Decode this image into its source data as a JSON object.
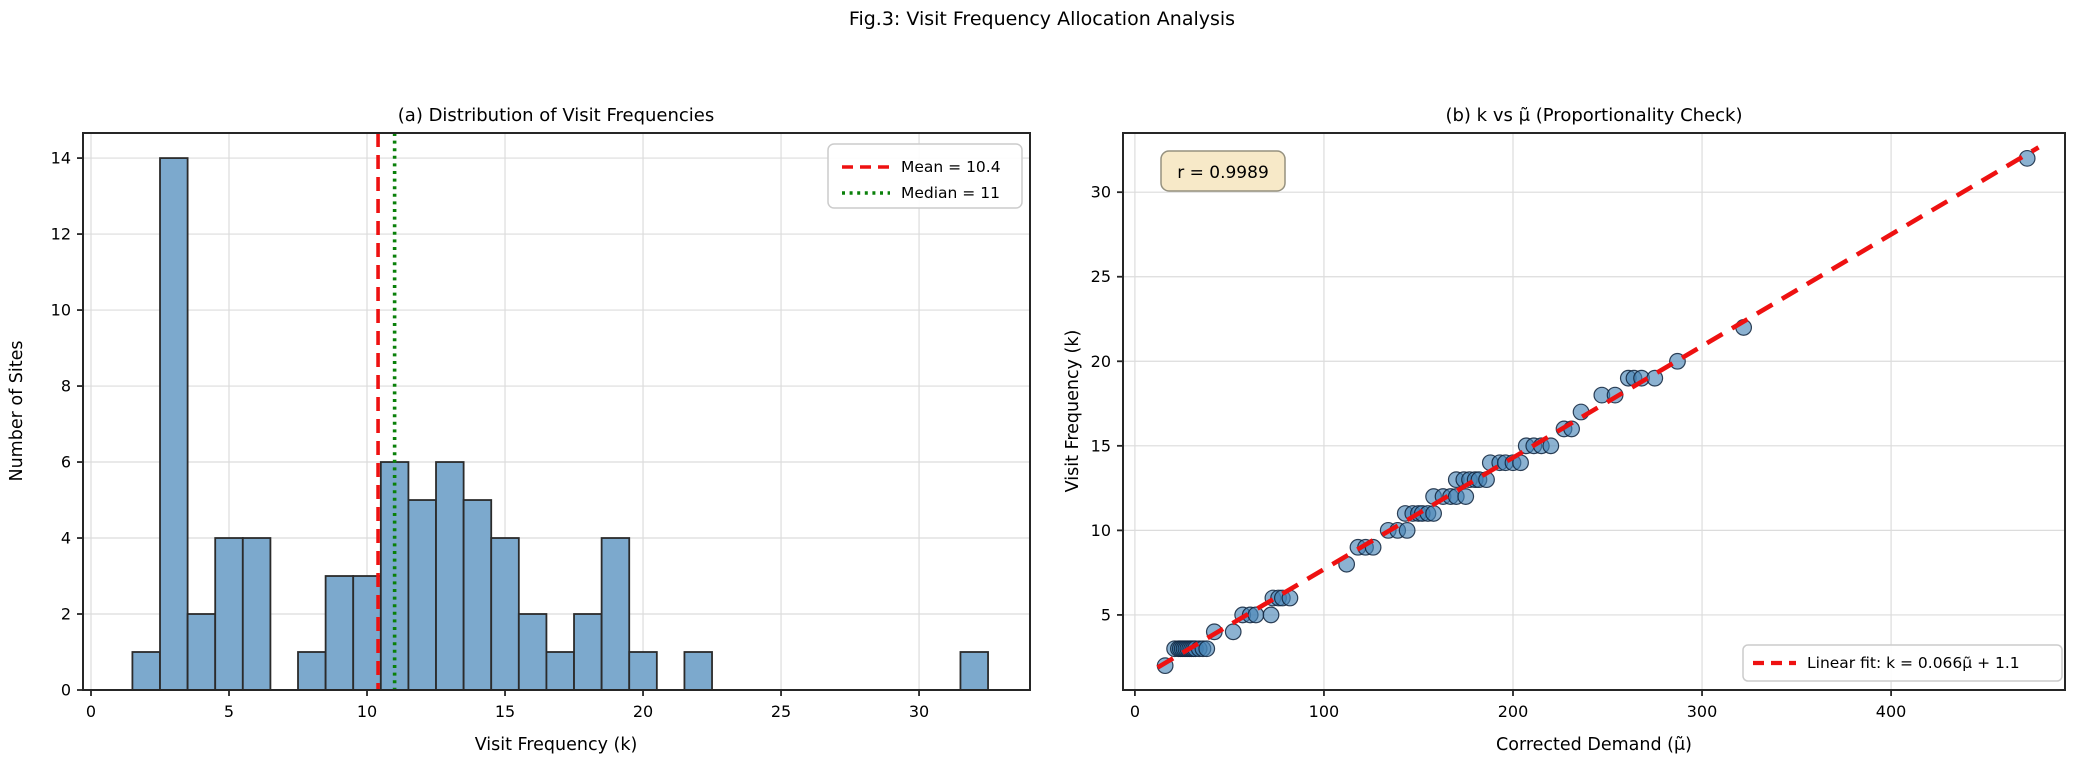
{
  "figure": {
    "suptitle": "Fig.3: Visit Frequency Allocation Analysis",
    "background": "#ffffff"
  },
  "colors": {
    "bar_fill": "#7CA9CD",
    "bar_edge": "#2B2B2B",
    "scatter_fill": "rgba(70,130,180,0.62)",
    "scatter_edge": "rgba(15,35,60,0.85)",
    "mean_red": "#EE1111",
    "median_green": "#0A800A",
    "fit_red": "#EE1111",
    "grid": "#DCDCDC",
    "spine": "#262626",
    "annotation_fill": "#F7E9C8",
    "annotation_border": "#95917F",
    "legend_fill": "rgba(255,255,255,0.9)",
    "legend_border": "#CCCCCC"
  },
  "chart_data": [
    {
      "type": "bar",
      "subtype": "histogram",
      "title": "(a) Distribution of Visit Frequencies",
      "xlabel": "Visit Frequency (k)",
      "ylabel": "Number of Sites",
      "bin_width": 1,
      "bins": [
        {
          "center": 2,
          "count": 1
        },
        {
          "center": 3,
          "count": 14
        },
        {
          "center": 4,
          "count": 2
        },
        {
          "center": 5,
          "count": 4
        },
        {
          "center": 6,
          "count": 4
        },
        {
          "center": 8,
          "count": 1
        },
        {
          "center": 9,
          "count": 3
        },
        {
          "center": 10,
          "count": 3
        },
        {
          "center": 11,
          "count": 6
        },
        {
          "center": 12,
          "count": 5
        },
        {
          "center": 13,
          "count": 6
        },
        {
          "center": 14,
          "count": 5
        },
        {
          "center": 15,
          "count": 4
        },
        {
          "center": 16,
          "count": 2
        },
        {
          "center": 17,
          "count": 1
        },
        {
          "center": 18,
          "count": 2
        },
        {
          "center": 19,
          "count": 4
        },
        {
          "center": 20,
          "count": 1
        },
        {
          "center": 22,
          "count": 1
        },
        {
          "center": 32,
          "count": 1
        }
      ],
      "xticks": [
        0,
        5,
        10,
        15,
        20,
        25,
        30
      ],
      "yticks": [
        0,
        2,
        4,
        6,
        8,
        10,
        12,
        14
      ],
      "xlim": [
        -0.29,
        34.02
      ],
      "ylim": [
        0,
        14.66
      ],
      "grid": true,
      "mean_line": {
        "value": 10.4,
        "label": "Mean = 10.4",
        "style": "dashed"
      },
      "median_line": {
        "value": 11,
        "label": "Median = 11",
        "style": "dotted"
      },
      "legend_position": "upper right"
    },
    {
      "type": "scatter",
      "title": "(b) k vs μ̃ (Proportionality Check)",
      "xlabel": "Corrected Demand (μ̃)",
      "ylabel": "Visit Frequency (k)",
      "points": [
        [
          16,
          2
        ],
        [
          21,
          3
        ],
        [
          23,
          3
        ],
        [
          24,
          3
        ],
        [
          25,
          3
        ],
        [
          26,
          3
        ],
        [
          27,
          3
        ],
        [
          28,
          3
        ],
        [
          29,
          3
        ],
        [
          30,
          3
        ],
        [
          31,
          3
        ],
        [
          32,
          3
        ],
        [
          34,
          3
        ],
        [
          36,
          3
        ],
        [
          38,
          3
        ],
        [
          42,
          4
        ],
        [
          52,
          4
        ],
        [
          57,
          5
        ],
        [
          61,
          5
        ],
        [
          64,
          5
        ],
        [
          72,
          5
        ],
        [
          73,
          6
        ],
        [
          76,
          6
        ],
        [
          78,
          6
        ],
        [
          82,
          6
        ],
        [
          112,
          8
        ],
        [
          118,
          9
        ],
        [
          122,
          9
        ],
        [
          126,
          9
        ],
        [
          134,
          10
        ],
        [
          139,
          10
        ],
        [
          144,
          10
        ],
        [
          143,
          11
        ],
        [
          147,
          11
        ],
        [
          150,
          11
        ],
        [
          152,
          11
        ],
        [
          155,
          11
        ],
        [
          158,
          11
        ],
        [
          158,
          12
        ],
        [
          163,
          12
        ],
        [
          167,
          12
        ],
        [
          170,
          12
        ],
        [
          175,
          12
        ],
        [
          170,
          13
        ],
        [
          174,
          13
        ],
        [
          177,
          13
        ],
        [
          180,
          13
        ],
        [
          182,
          13
        ],
        [
          186,
          13
        ],
        [
          188,
          14
        ],
        [
          193,
          14
        ],
        [
          196,
          14
        ],
        [
          200,
          14
        ],
        [
          204,
          14
        ],
        [
          207,
          15
        ],
        [
          211,
          15
        ],
        [
          215,
          15
        ],
        [
          220,
          15
        ],
        [
          227,
          16
        ],
        [
          231,
          16
        ],
        [
          236,
          17
        ],
        [
          247,
          18
        ],
        [
          254,
          18
        ],
        [
          261,
          19
        ],
        [
          264,
          19
        ],
        [
          268,
          19
        ],
        [
          275,
          19
        ],
        [
          287,
          20
        ],
        [
          322,
          22
        ],
        [
          472,
          32
        ]
      ],
      "fit": {
        "slope": 0.066,
        "intercept": 1.1,
        "label": "Linear fit: k = 0.066μ̃ + 1.1",
        "style": "dashed",
        "x_range": [
          12,
          478
        ]
      },
      "annotation": {
        "text": "r = 0.9989",
        "position": "upper left"
      },
      "xticks": [
        0,
        100,
        200,
        300,
        400
      ],
      "yticks": [
        5,
        10,
        15,
        20,
        25,
        30
      ],
      "xlim": [
        -6.3,
        492
      ],
      "ylim": [
        0.56,
        33.5
      ],
      "grid": true,
      "legend_position": "lower right"
    }
  ]
}
